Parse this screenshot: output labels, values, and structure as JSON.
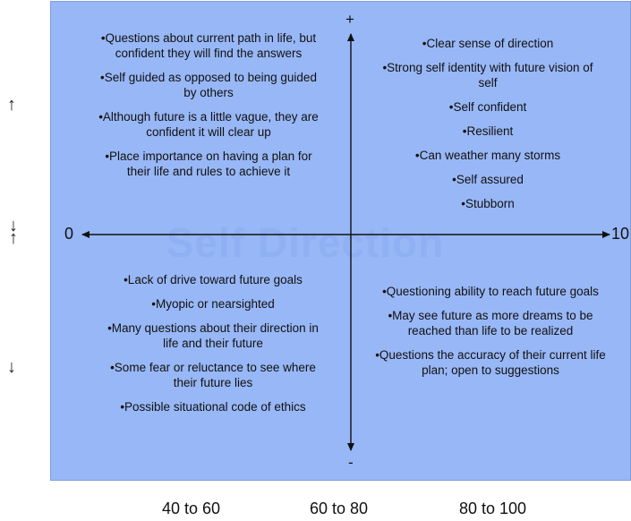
{
  "diagram": {
    "watermark": "Self Direction",
    "axis": {
      "top": "+",
      "bottom": "-",
      "left": "0",
      "right": "10"
    },
    "side_arrows": {
      "upper": "↑",
      "middle_down": "↓",
      "middle_up": "↑",
      "lower": "↓"
    },
    "quadrants": {
      "top_left": [
        "•Questions about current path in life, but confident they will find the answers",
        "•Self guided as opposed to being guided by others",
        "•Although future is a little vague, they are confident it will clear up",
        "•Place importance on having a plan for their life and rules to achieve it"
      ],
      "top_right": [
        "•Clear sense of direction",
        "•Strong self identity with future vision of self",
        "•Self confident",
        "•Resilient",
        "•Can weather many storms",
        "•Self assured",
        "•Stubborn"
      ],
      "bottom_left": [
        "•Lack of drive toward future goals",
        "•Myopic or nearsighted",
        "•Many questions about their direction in life and their future",
        "•Some fear or reluctance to see where their future lies",
        "•Possible situational code of ethics"
      ],
      "bottom_right": [
        "•Questioning ability to reach future goals",
        "•May see future as more dreams to be reached than life to be realized",
        "•Questions the accuracy of their current life plan; open to suggestions"
      ]
    },
    "bottom_labels": [
      "40 to 60",
      "60 to 80",
      "80 to 100"
    ]
  }
}
